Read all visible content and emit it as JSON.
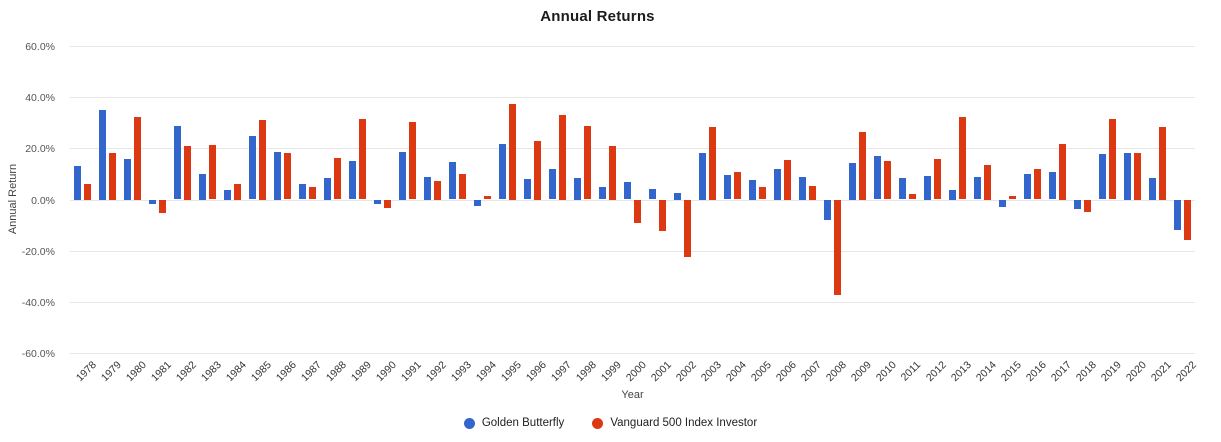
{
  "title": "Annual Returns",
  "axes": {
    "y_label": "Annual Return",
    "x_label": "Year",
    "y_ticks": [
      "60.0%",
      "40.0%",
      "20.0%",
      "0.0%",
      "-20.0%",
      "-40.0%",
      "-60.0%"
    ]
  },
  "colors": {
    "series1": "#3366cc",
    "series2": "#dc3912",
    "gridline": "#e6e6e6",
    "axis_text": "#555",
    "title_text": "#1c1c1c"
  },
  "chart_data": {
    "type": "bar",
    "title": "Annual Returns",
    "xlabel": "Year",
    "ylabel": "Annual Return",
    "ylim": [
      -60,
      60
    ],
    "y_tick_step": 20,
    "y_tick_format": "percent",
    "grid": true,
    "legend_position": "bottom",
    "categories": [
      "1978",
      "1979",
      "1980",
      "1981",
      "1982",
      "1983",
      "1984",
      "1985",
      "1986",
      "1987",
      "1988",
      "1989",
      "1990",
      "1991",
      "1992",
      "1993",
      "1994",
      "1995",
      "1996",
      "1997",
      "1998",
      "1999",
      "2000",
      "2001",
      "2002",
      "2003",
      "2004",
      "2005",
      "2006",
      "2007",
      "2008",
      "2009",
      "2010",
      "2011",
      "2012",
      "2013",
      "2014",
      "2015",
      "2016",
      "2017",
      "2018",
      "2019",
      "2020",
      "2021",
      "2022"
    ],
    "series": [
      {
        "name": "Golden Butterfly",
        "color": "#3366cc",
        "values": [
          13.2,
          35.0,
          15.9,
          -1.5,
          28.7,
          10.0,
          3.8,
          24.8,
          18.6,
          6.0,
          8.5,
          14.9,
          -1.6,
          18.6,
          8.8,
          14.6,
          -2.2,
          21.6,
          7.9,
          11.8,
          8.5,
          4.8,
          6.7,
          4.0,
          2.7,
          18.3,
          9.5,
          7.7,
          12.0,
          8.8,
          -8.0,
          14.4,
          16.9,
          8.4,
          9.2,
          3.8,
          8.7,
          -2.9,
          9.8,
          10.7,
          -3.5,
          17.7,
          18.3,
          8.5,
          -11.6
        ]
      },
      {
        "name": "Vanguard 500 Index Investor",
        "color": "#dc3912",
        "values": [
          6.2,
          18.3,
          32.3,
          -5.0,
          21.0,
          21.3,
          6.2,
          31.2,
          18.1,
          4.7,
          16.2,
          31.4,
          -3.3,
          30.2,
          7.4,
          9.9,
          1.2,
          37.4,
          22.9,
          33.2,
          28.6,
          21.1,
          -9.1,
          -12.0,
          -22.1,
          28.5,
          10.7,
          4.8,
          15.6,
          5.4,
          -37.0,
          26.5,
          14.9,
          2.0,
          15.8,
          32.2,
          13.5,
          1.3,
          11.8,
          21.7,
          -4.5,
          31.3,
          18.3,
          28.5,
          -15.8
        ]
      }
    ]
  }
}
